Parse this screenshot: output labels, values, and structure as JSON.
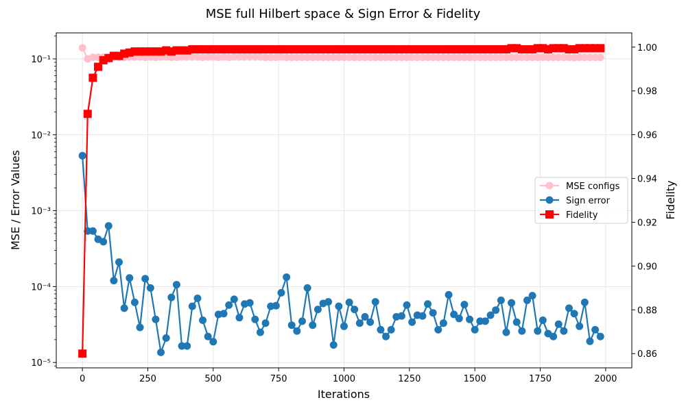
{
  "chart_data": {
    "type": "line",
    "title": "MSE full Hilbert space & Sign Error & Fidelity",
    "xlabel": "Iterations",
    "ylabel": "MSE / Error Values",
    "ylabel_right": "Fidelity",
    "xlim": [
      -100,
      2100
    ],
    "ylim": [
      8.5e-06,
      0.22
    ],
    "y_scale": "log",
    "ylim_right": [
      0.8535,
      1.0065
    ],
    "x_ticks": [
      0,
      250,
      500,
      750,
      1000,
      1250,
      1500,
      1750,
      2000
    ],
    "x_tick_labels": [
      "0",
      "250",
      "500",
      "750",
      "1000",
      "1250",
      "1500",
      "1750",
      "2000"
    ],
    "y_ticks": [
      1e-05,
      0.0001,
      0.001,
      0.01,
      0.1
    ],
    "y_tick_labels": [
      "10⁻⁵",
      "10⁻⁴",
      "10⁻³",
      "10⁻²",
      "10⁻¹"
    ],
    "y_right_ticks": [
      0.86,
      0.88,
      0.9,
      0.92,
      0.94,
      0.96,
      0.98,
      1.0
    ],
    "y_right_tick_labels": [
      "0.86",
      "0.88",
      "0.90",
      "0.92",
      "0.94",
      "0.96",
      "0.98",
      "1.00"
    ],
    "grid": true,
    "legend_position": "center-right",
    "x": [
      0,
      20,
      40,
      60,
      80,
      100,
      120,
      140,
      160,
      180,
      200,
      220,
      240,
      260,
      280,
      300,
      320,
      340,
      360,
      380,
      400,
      420,
      440,
      460,
      480,
      500,
      520,
      540,
      560,
      580,
      600,
      620,
      640,
      660,
      680,
      700,
      720,
      740,
      760,
      780,
      800,
      820,
      840,
      860,
      880,
      900,
      920,
      940,
      960,
      980,
      1000,
      1020,
      1040,
      1060,
      1080,
      1100,
      1120,
      1140,
      1160,
      1180,
      1200,
      1220,
      1240,
      1260,
      1280,
      1300,
      1320,
      1340,
      1360,
      1380,
      1400,
      1420,
      1440,
      1460,
      1480,
      1500,
      1520,
      1540,
      1560,
      1580,
      1600,
      1620,
      1640,
      1660,
      1680,
      1700,
      1720,
      1740,
      1760,
      1780,
      1800,
      1820,
      1840,
      1860,
      1880,
      1900,
      1920,
      1940,
      1960,
      1980
    ],
    "series": [
      {
        "name": "MSE configs",
        "axis": "left",
        "color": "#ffc0cb",
        "marker": "circle",
        "values": [
          0.14,
          0.1,
          0.105,
          0.105,
          0.105,
          0.105,
          0.106,
          0.105,
          0.105,
          0.106,
          0.106,
          0.106,
          0.105,
          0.106,
          0.105,
          0.106,
          0.106,
          0.105,
          0.105,
          0.106,
          0.106,
          0.106,
          0.106,
          0.105,
          0.106,
          0.106,
          0.105,
          0.106,
          0.105,
          0.106,
          0.106,
          0.106,
          0.106,
          0.106,
          0.106,
          0.105,
          0.105,
          0.105,
          0.106,
          0.105,
          0.105,
          0.105,
          0.105,
          0.105,
          0.105,
          0.105,
          0.105,
          0.105,
          0.105,
          0.105,
          0.105,
          0.105,
          0.105,
          0.105,
          0.105,
          0.105,
          0.105,
          0.105,
          0.105,
          0.105,
          0.105,
          0.105,
          0.105,
          0.105,
          0.105,
          0.105,
          0.105,
          0.105,
          0.105,
          0.105,
          0.105,
          0.105,
          0.105,
          0.105,
          0.105,
          0.105,
          0.105,
          0.105,
          0.105,
          0.105,
          0.105,
          0.105,
          0.105,
          0.105,
          0.105,
          0.105,
          0.105,
          0.105,
          0.105,
          0.105,
          0.105,
          0.105,
          0.105,
          0.105,
          0.104,
          0.105,
          0.105,
          0.105,
          0.105,
          0.105
        ]
      },
      {
        "name": "Sign error",
        "axis": "left",
        "color": "#1f77b4",
        "marker": "circle",
        "values": [
          0.0053,
          0.00054,
          0.00054,
          0.00042,
          0.00039,
          0.00063,
          0.00012,
          0.00021,
          5.2e-05,
          0.00013,
          6.2e-05,
          2.9e-05,
          0.000127,
          9.6e-05,
          3.7e-05,
          1.36e-05,
          2.1e-05,
          7.2e-05,
          0.000106,
          1.65e-05,
          1.65e-05,
          5.5e-05,
          7e-05,
          3.6e-05,
          2.2e-05,
          1.88e-05,
          4.3e-05,
          4.4e-05,
          5.7e-05,
          6.8e-05,
          3.9e-05,
          5.9e-05,
          6.1e-05,
          3.7e-05,
          2.5e-05,
          3.3e-05,
          5.5e-05,
          5.6e-05,
          8.3e-05,
          0.000133,
          3.1e-05,
          2.6e-05,
          3.5e-05,
          9.6e-05,
          3.1e-05,
          5e-05,
          6e-05,
          6.3e-05,
          1.7e-05,
          5.5e-05,
          3e-05,
          6.2e-05,
          5e-05,
          3.3e-05,
          4e-05,
          3.4e-05,
          6.3e-05,
          2.7e-05,
          2.2e-05,
          2.7e-05,
          4e-05,
          4.1e-05,
          5.7e-05,
          3.4e-05,
          4.2e-05,
          4.1e-05,
          5.9e-05,
          4.5e-05,
          2.7e-05,
          3.3e-05,
          7.8e-05,
          4.3e-05,
          3.8e-05,
          5.8e-05,
          3.7e-05,
          2.7e-05,
          3.5e-05,
          3.5e-05,
          4.2e-05,
          4.9e-05,
          6.6e-05,
          2.5e-05,
          6.1e-05,
          3.4e-05,
          2.6e-05,
          6.6e-05,
          7.6e-05,
          2.6e-05,
          3.6e-05,
          2.4e-05,
          2.2e-05,
          3.2e-05,
          2.6e-05,
          5.2e-05,
          4.4e-05,
          3e-05,
          6.2e-05,
          1.9e-05,
          2.7e-05,
          2.2e-05
        ]
      },
      {
        "name": "Fidelity",
        "axis": "right",
        "color": "#ff0000",
        "marker": "square",
        "values": [
          0.86,
          0.9695,
          0.986,
          0.991,
          0.994,
          0.995,
          0.996,
          0.996,
          0.997,
          0.9975,
          0.998,
          0.998,
          0.998,
          0.998,
          0.998,
          0.998,
          0.9985,
          0.998,
          0.9985,
          0.9985,
          0.9985,
          0.999,
          0.999,
          0.999,
          0.999,
          0.999,
          0.999,
          0.999,
          0.999,
          0.999,
          0.999,
          0.999,
          0.999,
          0.999,
          0.999,
          0.999,
          0.999,
          0.999,
          0.999,
          0.999,
          0.999,
          0.999,
          0.999,
          0.999,
          0.999,
          0.999,
          0.999,
          0.999,
          0.999,
          0.999,
          0.999,
          0.999,
          0.999,
          0.999,
          0.999,
          0.999,
          0.999,
          0.999,
          0.999,
          0.999,
          0.999,
          0.999,
          0.999,
          0.999,
          0.999,
          0.999,
          0.999,
          0.999,
          0.999,
          0.999,
          0.999,
          0.999,
          0.999,
          0.999,
          0.999,
          0.999,
          0.999,
          0.999,
          0.999,
          0.999,
          0.999,
          0.999,
          0.9995,
          0.9995,
          0.999,
          0.999,
          0.999,
          0.9995,
          0.9995,
          0.999,
          0.9995,
          0.9995,
          0.9995,
          0.999,
          0.999,
          0.9995,
          0.9995,
          0.9995,
          0.9995,
          0.9995
        ]
      }
    ]
  }
}
